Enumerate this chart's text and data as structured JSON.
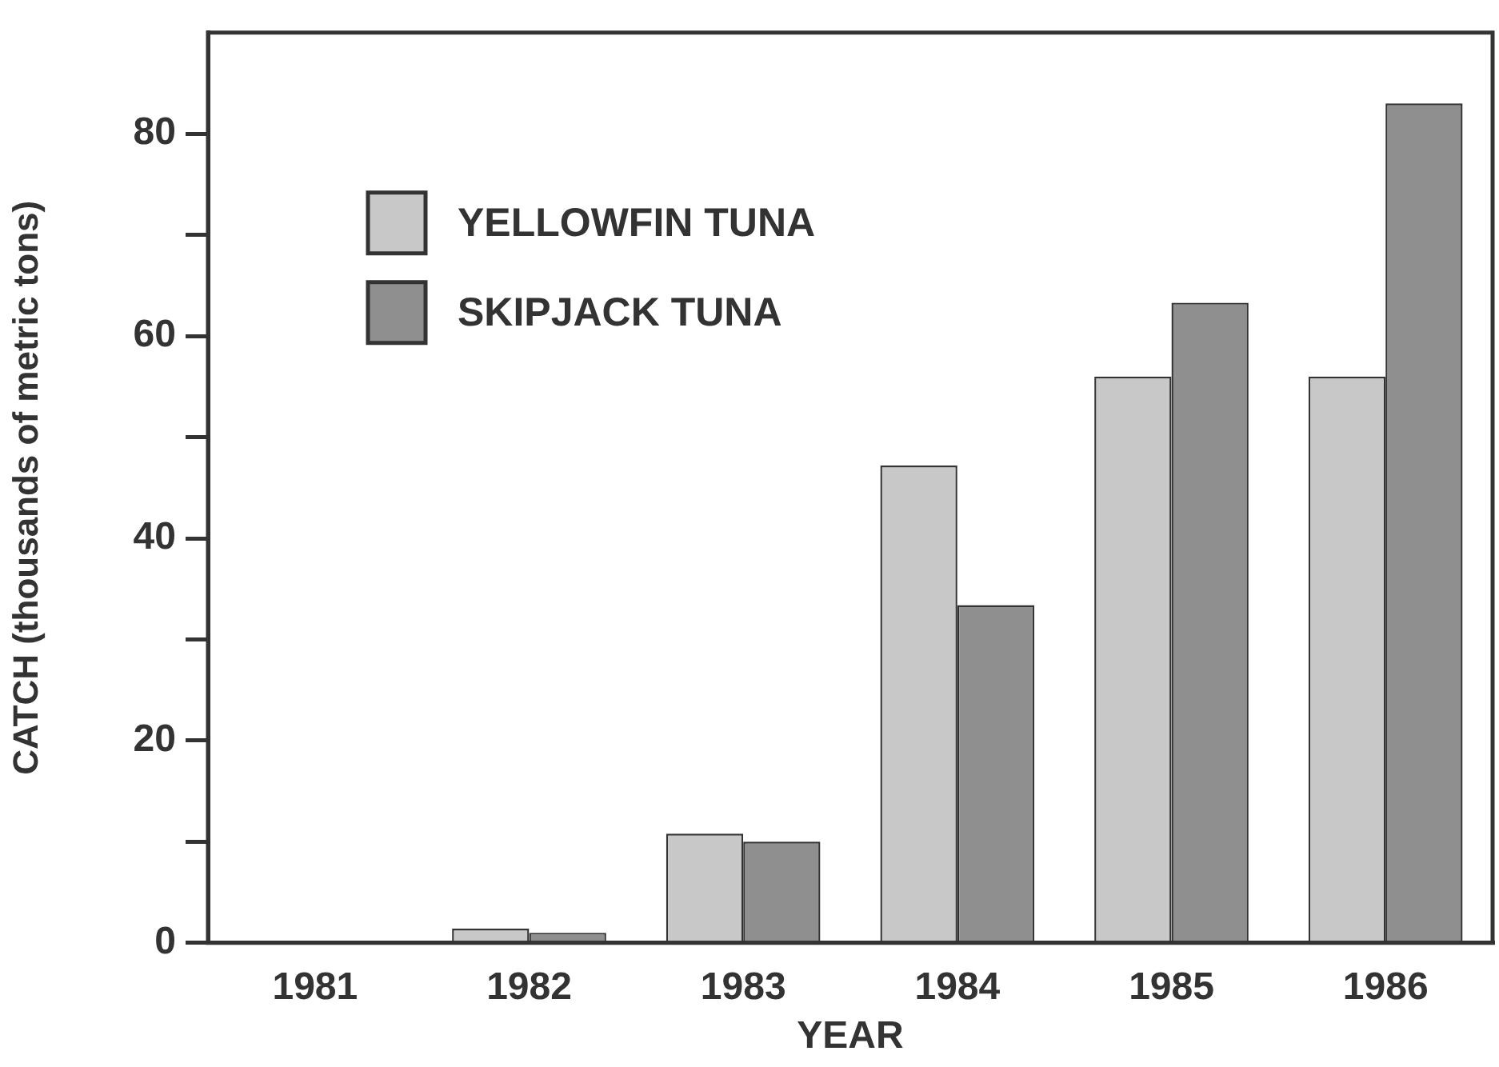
{
  "chart_data": {
    "type": "bar",
    "xlabel": "YEAR",
    "ylabel": "CATCH (thousands of metric tons)",
    "categories": [
      "1981",
      "1982",
      "1983",
      "1984",
      "1985",
      "1986"
    ],
    "series": [
      {
        "name": "YELLOWFIN TUNA",
        "color": "#c8c8c8",
        "values": [
          null,
          1.4,
          10.8,
          47.2,
          56,
          56
        ]
      },
      {
        "name": "SKIPJACK TUNA",
        "color": "#8f8f8f",
        "values": [
          null,
          1.0,
          10.0,
          33.4,
          63.3,
          83
        ]
      }
    ],
    "ylim": [
      0,
      90
    ],
    "yticks": [
      0,
      {
        "value": 10,
        "label": null
      },
      20,
      {
        "value": 30,
        "label": null
      },
      40,
      {
        "value": 50,
        "label": null
      },
      60,
      {
        "value": 70,
        "label": null
      },
      80
    ],
    "grid": false,
    "legend": "top left"
  }
}
